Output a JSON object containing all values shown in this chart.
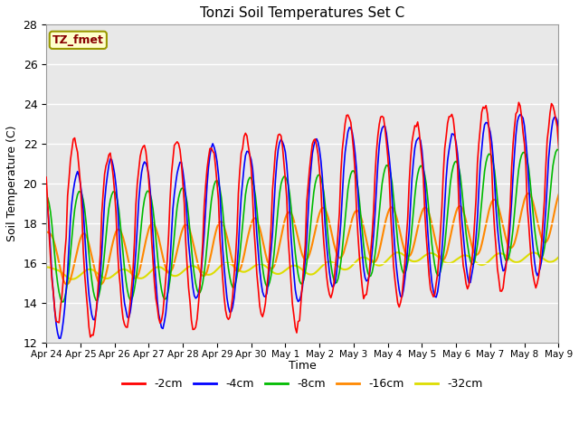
{
  "title": "Tonzi Soil Temperatures Set C",
  "ylabel": "Soil Temperature (C)",
  "xlabel": "Time",
  "ylim": [
    12,
    28
  ],
  "annotation": "TZ_fmet",
  "legend_labels": [
    "-2cm",
    "-4cm",
    "-8cm",
    "-16cm",
    "-32cm"
  ],
  "legend_colors": [
    "#ff0000",
    "#0000ff",
    "#00bb00",
    "#ff8800",
    "#dddd00"
  ],
  "bg_color": "#e8e8e8",
  "fig_bg": "#ffffff",
  "grid_color": "#ffffff",
  "n_points": 384,
  "period_hours": 24,
  "base_temp": 16.5,
  "xtick_labels": [
    "Apr 24",
    "Apr 25",
    "Apr 26",
    "Apr 27",
    "Apr 28",
    "Apr 29",
    "Apr 30",
    "May 1",
    "May 2",
    "May 3",
    "May 4",
    "May 5",
    "May 6",
    "May 7",
    "May 8",
    "May 9"
  ],
  "xtick_positions": [
    0,
    24,
    48,
    72,
    96,
    120,
    144,
    168,
    192,
    216,
    240,
    264,
    288,
    312,
    336,
    360
  ]
}
